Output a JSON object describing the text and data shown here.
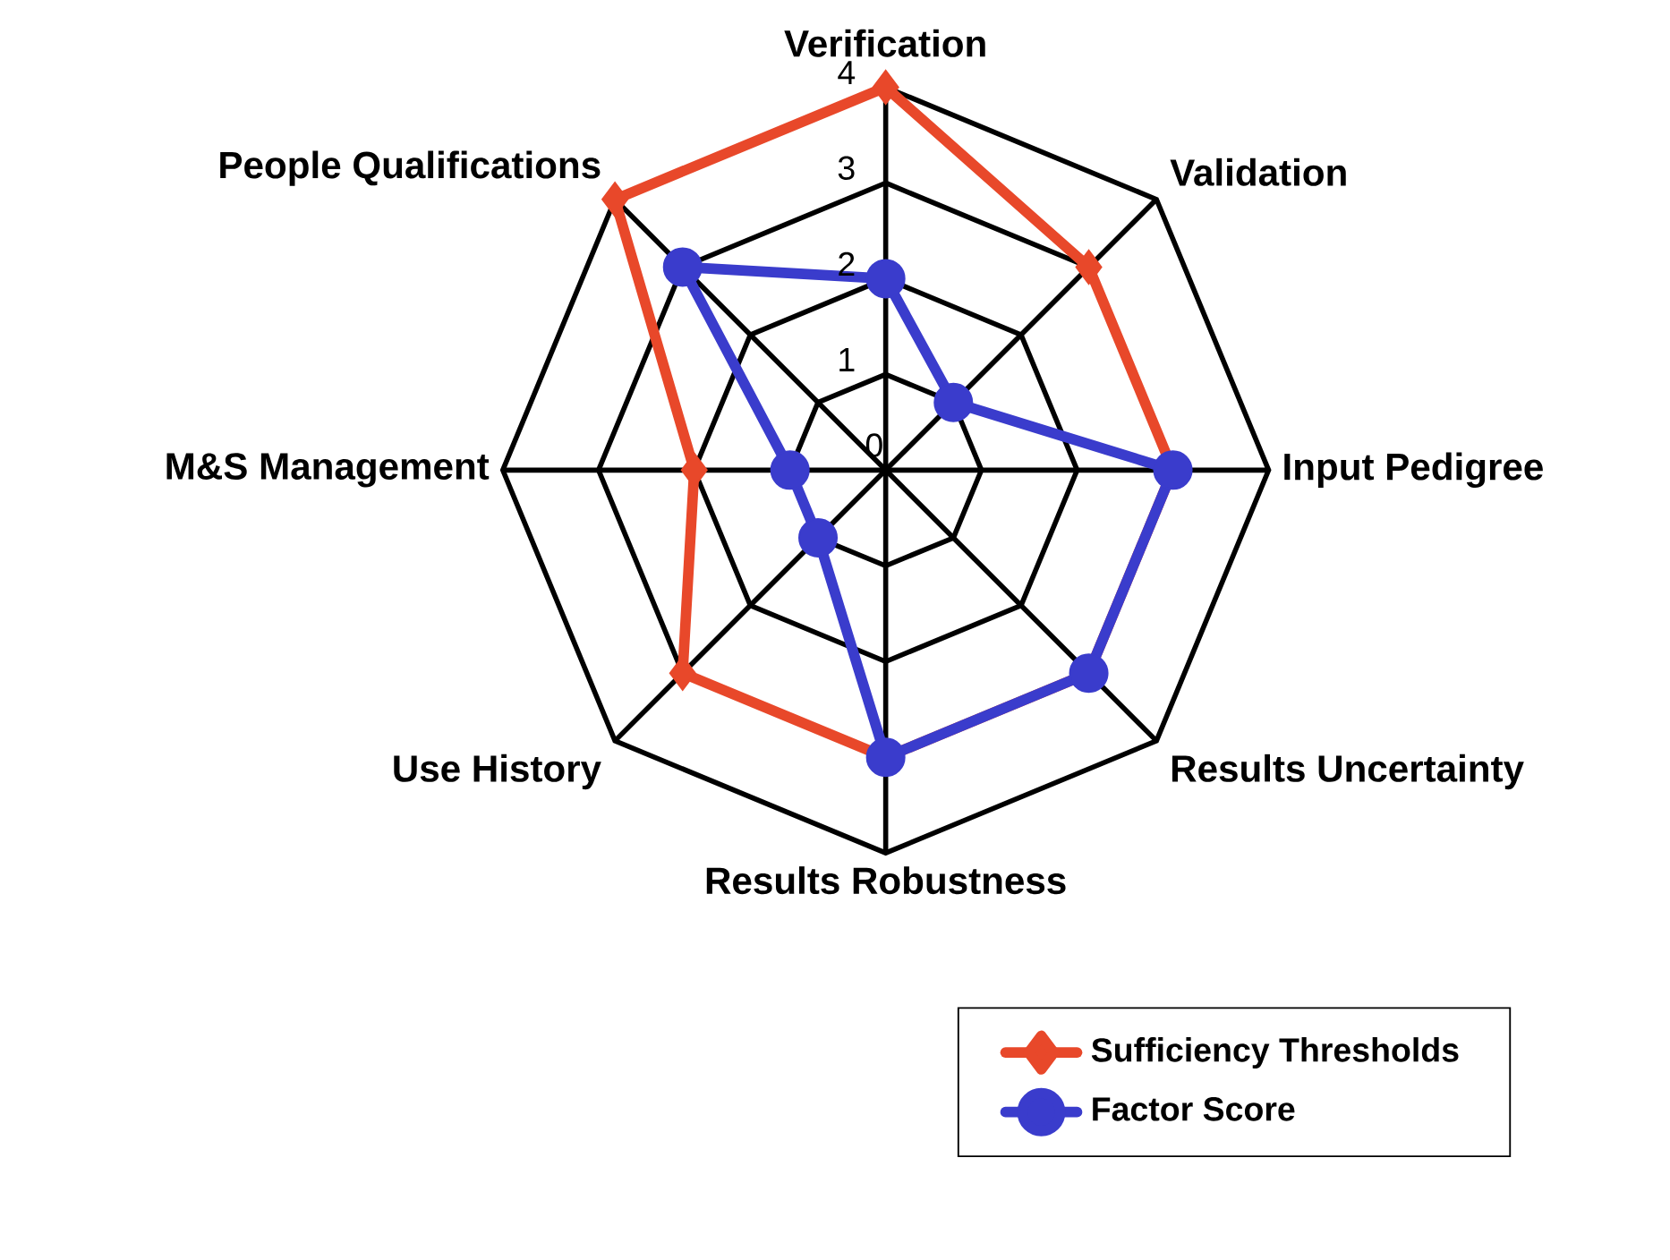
{
  "chart_data": {
    "type": "radar",
    "categories": [
      "Verification",
      "Validation",
      "Input Pedigree",
      "Results Uncertainty",
      "Results Robustness",
      "Use History",
      "M&S Management",
      "People Qualifications"
    ],
    "series": [
      {
        "name": "Sufficiency Thresholds",
        "color": "#e8482a",
        "marker": "diamond",
        "values": [
          4,
          3,
          3,
          3,
          3,
          3,
          2,
          4
        ]
      },
      {
        "name": "Factor Score",
        "color": "#3a3ccc",
        "marker": "circle",
        "values": [
          2,
          1,
          3,
          3,
          3,
          1,
          1,
          3
        ]
      }
    ],
    "ylim": [
      0,
      4
    ],
    "yticks": [
      0,
      1,
      2,
      3,
      4
    ],
    "grid": true,
    "legend": "bottom right"
  }
}
